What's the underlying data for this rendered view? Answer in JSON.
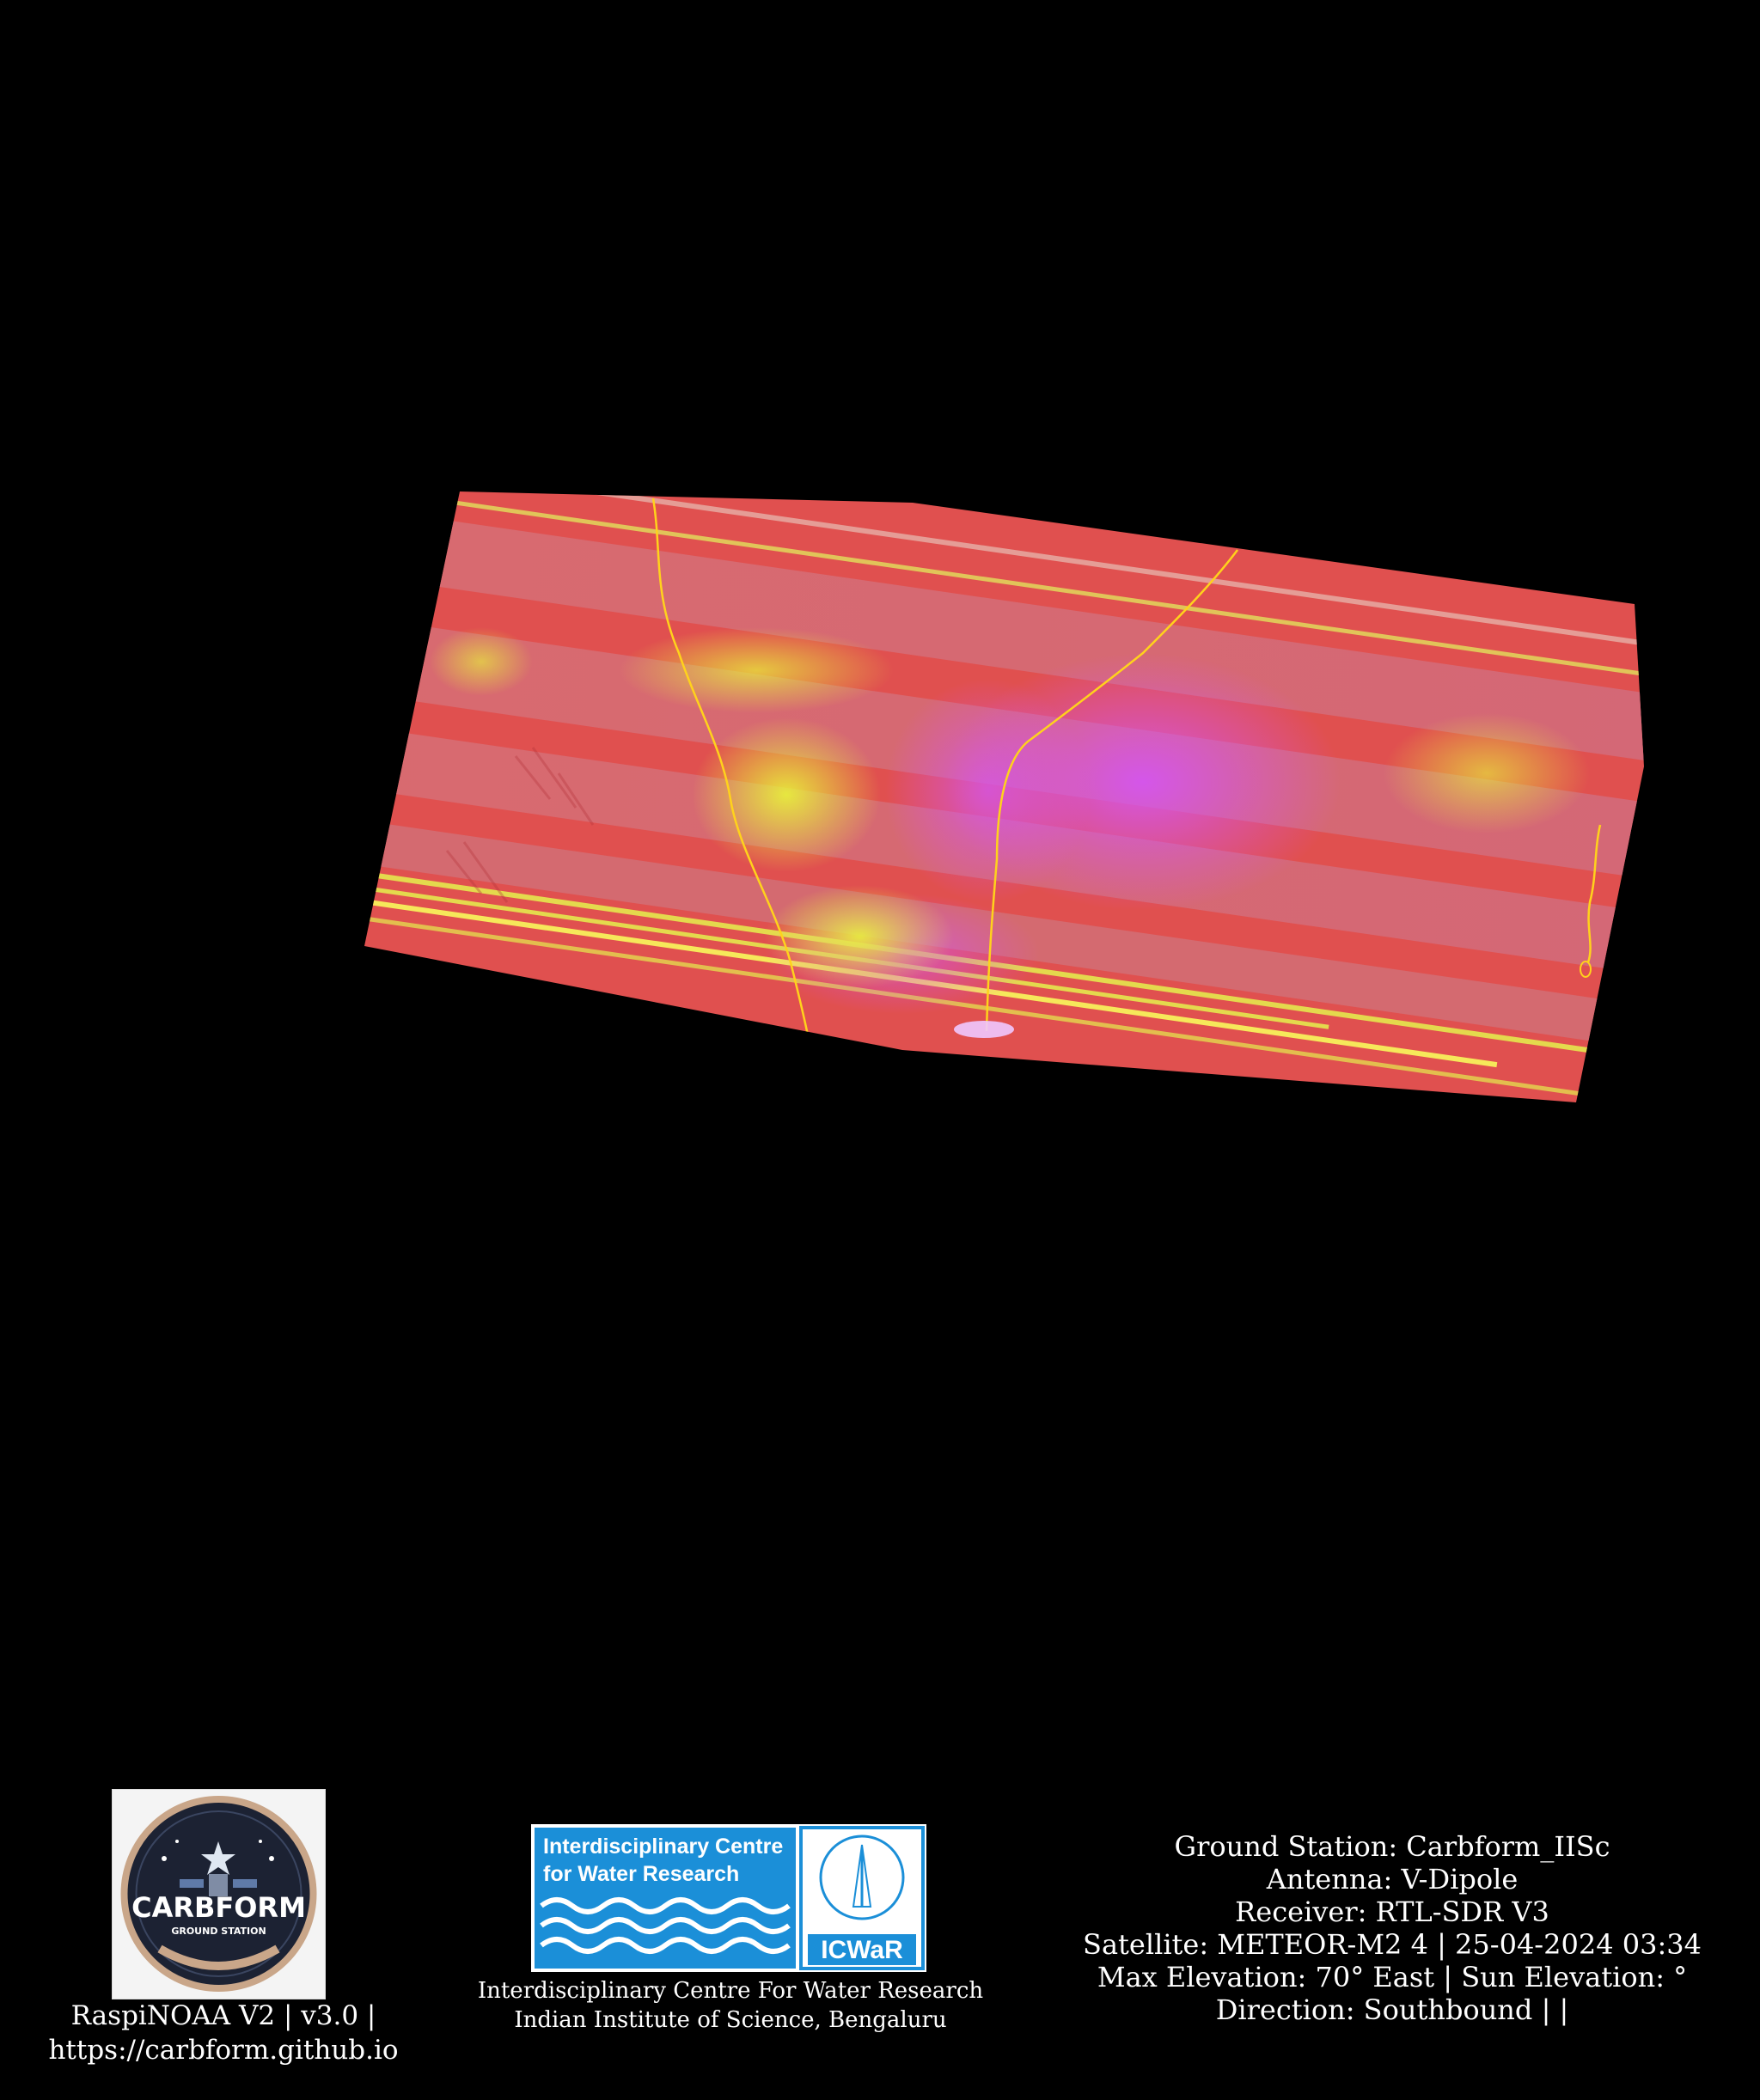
{
  "image": {
    "colors": {
      "background": "#000000",
      "swath_base": "#e0504f",
      "swath_band_light": "#d86a6f",
      "vegetation": "#e6f23a",
      "cloud": "#d45be8",
      "coastline": "#ffd21c",
      "text": "#ffffff",
      "icwar_blue": "#1b8fd8"
    }
  },
  "footer": {
    "left": {
      "logo_text": "CARBFORM",
      "logo_subtext": "GROUND STATION",
      "line1": "RaspiNOAA V2 | v3.0 |",
      "line2": "https://carbform.github.io"
    },
    "center": {
      "logo_text_line1": "Interdisciplinary Centre",
      "logo_text_line2": "for Water Research",
      "logo_badge": "ICWaR",
      "line1": "Interdisciplinary Centre For Water Research",
      "line2": "Indian Institute of Science, Bengaluru"
    },
    "right": {
      "ground_station": "Ground Station: Carbform_IISc",
      "antenna": "Antenna: V-Dipole",
      "receiver": "Receiver: RTL-SDR V3",
      "satellite": "Satellite: METEOR-M2 4 | 25-04-2024 03:34",
      "elevation": "Max Elevation: 70° East | Sun Elevation: °",
      "direction": "Direction: Southbound | |"
    }
  }
}
